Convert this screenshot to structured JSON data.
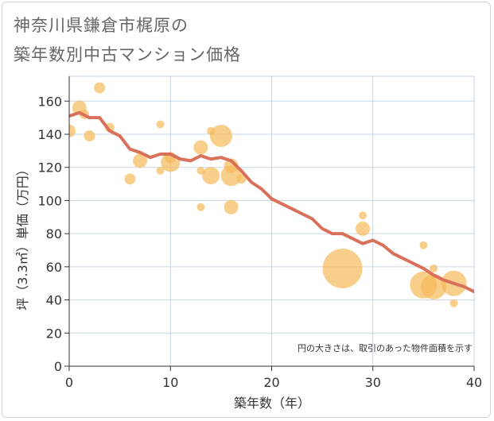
{
  "title_line1": "神奈川県鎌倉市梶原の",
  "title_line2": "築年数別中古マンション価格",
  "chart_data": {
    "type": "scatter",
    "xlabel": "築年数（年）",
    "ylabel": "坪（3.3㎡）単価（万円）",
    "xlim": [
      0,
      40
    ],
    "ylim": [
      0,
      175
    ],
    "xticks": [
      0,
      10,
      20,
      30,
      40
    ],
    "yticks": [
      0,
      20,
      40,
      60,
      80,
      100,
      120,
      140,
      160
    ],
    "grid": true,
    "note": "円の大きさは、取引のあった物件面積を示す",
    "colors": {
      "bubble": "#f5b95a",
      "line": "#d9705a",
      "grid": "#c9d6e3"
    },
    "bubbles": [
      {
        "x": 0,
        "y": 142,
        "s": 8
      },
      {
        "x": 1,
        "y": 156,
        "s": 9
      },
      {
        "x": 1.5,
        "y": 152,
        "s": 6
      },
      {
        "x": 2,
        "y": 139,
        "s": 7
      },
      {
        "x": 3,
        "y": 168,
        "s": 7
      },
      {
        "x": 4,
        "y": 144,
        "s": 6
      },
      {
        "x": 6,
        "y": 113,
        "s": 7
      },
      {
        "x": 7,
        "y": 124,
        "s": 9
      },
      {
        "x": 9,
        "y": 146,
        "s": 5
      },
      {
        "x": 9,
        "y": 118,
        "s": 5
      },
      {
        "x": 10,
        "y": 123,
        "s": 12
      },
      {
        "x": 10,
        "y": 126,
        "s": 7
      },
      {
        "x": 13,
        "y": 132,
        "s": 9
      },
      {
        "x": 13,
        "y": 118,
        "s": 5
      },
      {
        "x": 13,
        "y": 96,
        "s": 5
      },
      {
        "x": 14,
        "y": 115,
        "s": 11
      },
      {
        "x": 14,
        "y": 142,
        "s": 5
      },
      {
        "x": 15,
        "y": 139,
        "s": 14
      },
      {
        "x": 16,
        "y": 115,
        "s": 13
      },
      {
        "x": 16,
        "y": 121,
        "s": 9
      },
      {
        "x": 16,
        "y": 96,
        "s": 9
      },
      {
        "x": 17,
        "y": 113,
        "s": 6
      },
      {
        "x": 27,
        "y": 59,
        "s": 25
      },
      {
        "x": 29,
        "y": 91,
        "s": 5
      },
      {
        "x": 29,
        "y": 83,
        "s": 9
      },
      {
        "x": 35,
        "y": 73,
        "s": 5
      },
      {
        "x": 35,
        "y": 49,
        "s": 17
      },
      {
        "x": 36,
        "y": 59,
        "s": 5
      },
      {
        "x": 36,
        "y": 48,
        "s": 16
      },
      {
        "x": 38,
        "y": 50,
        "s": 16
      },
      {
        "x": 38,
        "y": 38,
        "s": 5
      }
    ],
    "series": [
      {
        "x": [
          0,
          1,
          2,
          3,
          4,
          5,
          6,
          7,
          8,
          9,
          10,
          11,
          12,
          13,
          14,
          15,
          16,
          17,
          18,
          19,
          20,
          21,
          22,
          23,
          24,
          25,
          26,
          27,
          28,
          29,
          30,
          31,
          32,
          33,
          34,
          35,
          36,
          37,
          38,
          39,
          40
        ],
        "y": [
          151,
          153,
          150,
          150,
          142,
          139,
          131,
          129,
          126,
          128,
          128,
          125,
          124,
          127,
          125,
          126,
          124,
          118,
          111,
          107,
          101,
          98,
          95,
          92,
          89,
          83,
          80,
          80,
          77,
          74,
          76,
          73,
          68,
          65,
          62,
          59,
          55,
          52,
          50,
          48,
          45
        ]
      }
    ]
  }
}
